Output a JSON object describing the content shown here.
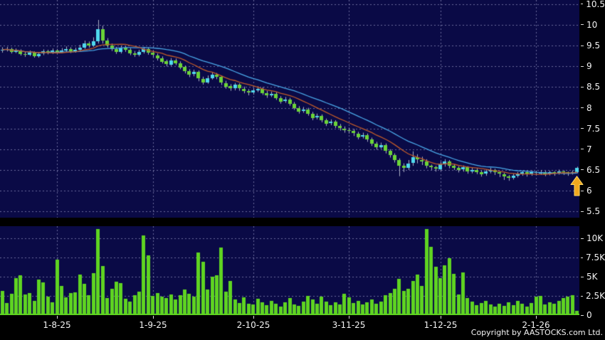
{
  "meta": {
    "copyright": "Copyright by AASTOCKS.com Ltd."
  },
  "colors": {
    "page_bg": "#000000",
    "panel_bg": "#0a0a46",
    "grid": "rgba(160,160,205,0.65)",
    "candle_up": "#4fd9ee",
    "candle_down": "#6ad437",
    "wick": "#aab0c2",
    "ma_short": "#c05a28",
    "ma_long": "#4aa8e8",
    "volume_bar": "#5fd421",
    "axis_text": "#f2f2f2",
    "arrow_fill": "#f0a81e",
    "arrow_stroke": "#ffd866"
  },
  "chart_data": {
    "type": "candlestick",
    "title": "",
    "xlabel": "",
    "ylabel": "",
    "legend": [],
    "grid": "dashed",
    "price_axis": {
      "ylim": [
        5.35,
        10.6
      ],
      "ticks": [
        {
          "label": "10.5",
          "value": 10.5
        },
        {
          "label": "10",
          "value": 10
        },
        {
          "label": "9.5",
          "value": 9.5
        },
        {
          "label": "9",
          "value": 9
        },
        {
          "label": "8.5",
          "value": 8.5
        },
        {
          "label": "8",
          "value": 8
        },
        {
          "label": "7.5",
          "value": 7.5
        },
        {
          "label": "7",
          "value": 7
        },
        {
          "label": "6.5",
          "value": 6.5
        },
        {
          "label": "6",
          "value": 6
        },
        {
          "label": "5.5",
          "value": 5.5
        }
      ]
    },
    "volume_axis": {
      "ylim": [
        0,
        11.6
      ],
      "unit": "K",
      "ticks": [
        {
          "label": "10K",
          "value": 10
        },
        {
          "label": "7.5K",
          "value": 7.5
        },
        {
          "label": "5K",
          "value": 5
        },
        {
          "label": "2.5K",
          "value": 2.5
        },
        {
          "label": "0",
          "value": 0
        }
      ]
    },
    "x_axis": {
      "ticks": [
        {
          "label": "1-8-25",
          "index": 12
        },
        {
          "label": "1-9-25",
          "index": 33
        },
        {
          "label": "2-10-25",
          "index": 55
        },
        {
          "label": "3-11-25",
          "index": 76
        },
        {
          "label": "1-12-25",
          "index": 96
        },
        {
          "label": "2-1-26",
          "index": 117
        }
      ]
    },
    "ma_short_period": 10,
    "ma_long_period": 20,
    "marker": {
      "type": "up-arrow",
      "candle_index": 126,
      "price": 6.2
    },
    "candles": [
      [
        9.38,
        9.46,
        9.33,
        9.4
      ],
      [
        9.4,
        9.47,
        9.36,
        9.42
      ],
      [
        9.42,
        9.45,
        9.31,
        9.35
      ],
      [
        9.35,
        9.43,
        9.32,
        9.38
      ],
      [
        9.38,
        9.41,
        9.26,
        9.3
      ],
      [
        9.3,
        9.35,
        9.23,
        9.28
      ],
      [
        9.28,
        9.38,
        9.25,
        9.33
      ],
      [
        9.33,
        9.36,
        9.21,
        9.25
      ],
      [
        9.25,
        9.34,
        9.21,
        9.3
      ],
      [
        9.3,
        9.41,
        9.27,
        9.36
      ],
      [
        9.36,
        9.4,
        9.29,
        9.33
      ],
      [
        9.33,
        9.43,
        9.3,
        9.38
      ],
      [
        9.38,
        9.42,
        9.31,
        9.35
      ],
      [
        9.35,
        9.44,
        9.32,
        9.38
      ],
      [
        9.38,
        9.48,
        9.35,
        9.42
      ],
      [
        9.42,
        9.46,
        9.32,
        9.36
      ],
      [
        9.36,
        9.45,
        9.33,
        9.4
      ],
      [
        9.4,
        9.52,
        9.37,
        9.45
      ],
      [
        9.45,
        9.62,
        9.42,
        9.55
      ],
      [
        9.55,
        9.6,
        9.45,
        9.5
      ],
      [
        9.5,
        9.7,
        9.47,
        9.6
      ],
      [
        9.6,
        10.12,
        9.55,
        9.9
      ],
      [
        9.9,
        9.98,
        9.55,
        9.62
      ],
      [
        9.62,
        9.68,
        9.45,
        9.5
      ],
      [
        9.5,
        9.55,
        9.37,
        9.42
      ],
      [
        9.42,
        9.47,
        9.3,
        9.35
      ],
      [
        9.35,
        9.5,
        9.31,
        9.45
      ],
      [
        9.45,
        9.49,
        9.35,
        9.4
      ],
      [
        9.4,
        9.44,
        9.27,
        9.32
      ],
      [
        9.32,
        9.37,
        9.23,
        9.28
      ],
      [
        9.28,
        9.4,
        9.24,
        9.35
      ],
      [
        9.35,
        9.47,
        9.31,
        9.42
      ],
      [
        9.42,
        9.46,
        9.28,
        9.33
      ],
      [
        9.33,
        9.38,
        9.22,
        9.27
      ],
      [
        9.27,
        9.31,
        9.14,
        9.2
      ],
      [
        9.2,
        9.24,
        9.07,
        9.12
      ],
      [
        9.12,
        9.16,
        9.0,
        9.05
      ],
      [
        9.05,
        9.2,
        9.01,
        9.15
      ],
      [
        9.15,
        9.19,
        9.03,
        9.08
      ],
      [
        9.08,
        9.12,
        8.93,
        8.98
      ],
      [
        8.98,
        9.02,
        8.83,
        8.88
      ],
      [
        8.88,
        8.93,
        8.74,
        8.8
      ],
      [
        8.8,
        8.92,
        8.76,
        8.86
      ],
      [
        8.86,
        8.9,
        8.64,
        8.7
      ],
      [
        8.7,
        8.75,
        8.56,
        8.62
      ],
      [
        8.62,
        8.78,
        8.58,
        8.72
      ],
      [
        8.72,
        8.86,
        8.68,
        8.8
      ],
      [
        8.8,
        8.84,
        8.69,
        8.74
      ],
      [
        8.74,
        8.78,
        8.55,
        8.6
      ],
      [
        8.6,
        8.65,
        8.46,
        8.52
      ],
      [
        8.52,
        8.57,
        8.41,
        8.46
      ],
      [
        8.46,
        8.6,
        8.42,
        8.55
      ],
      [
        8.55,
        8.59,
        8.41,
        8.46
      ],
      [
        8.46,
        8.51,
        8.35,
        8.4
      ],
      [
        8.4,
        8.45,
        8.3,
        8.36
      ],
      [
        8.36,
        8.48,
        8.32,
        8.42
      ],
      [
        8.42,
        8.52,
        8.38,
        8.46
      ],
      [
        8.46,
        8.5,
        8.31,
        8.36
      ],
      [
        8.36,
        8.41,
        8.24,
        8.3
      ],
      [
        8.3,
        8.39,
        8.26,
        8.34
      ],
      [
        8.34,
        8.38,
        8.19,
        8.24
      ],
      [
        8.24,
        8.28,
        8.1,
        8.16
      ],
      [
        8.16,
        8.26,
        8.12,
        8.2
      ],
      [
        8.2,
        8.24,
        8.05,
        8.1
      ],
      [
        8.1,
        8.14,
        7.95,
        8.0
      ],
      [
        8.0,
        8.04,
        7.86,
        7.92
      ],
      [
        7.92,
        8.02,
        7.88,
        7.96
      ],
      [
        7.96,
        8.0,
        7.81,
        7.86
      ],
      [
        7.86,
        7.9,
        7.7,
        7.76
      ],
      [
        7.76,
        7.86,
        7.72,
        7.8
      ],
      [
        7.8,
        7.84,
        7.65,
        7.7
      ],
      [
        7.7,
        7.74,
        7.56,
        7.62
      ],
      [
        7.62,
        7.72,
        7.58,
        7.66
      ],
      [
        7.66,
        7.7,
        7.51,
        7.56
      ],
      [
        7.56,
        7.61,
        7.45,
        7.5
      ],
      [
        7.5,
        7.55,
        7.4,
        7.46
      ],
      [
        7.46,
        7.52,
        7.38,
        7.44
      ],
      [
        7.44,
        7.49,
        7.32,
        7.38
      ],
      [
        7.38,
        7.42,
        7.24,
        7.3
      ],
      [
        7.3,
        7.4,
        7.26,
        7.34
      ],
      [
        7.34,
        7.38,
        7.18,
        7.24
      ],
      [
        7.24,
        7.28,
        7.08,
        7.14
      ],
      [
        7.14,
        7.18,
        6.99,
        7.05
      ],
      [
        7.05,
        7.16,
        7.01,
        7.1
      ],
      [
        7.1,
        7.14,
        6.9,
        6.96
      ],
      [
        6.96,
        7.0,
        6.8,
        6.86
      ],
      [
        6.86,
        6.9,
        6.68,
        6.74
      ],
      [
        6.74,
        6.78,
        6.35,
        6.6
      ],
      [
        6.6,
        6.66,
        6.45,
        6.55
      ],
      [
        6.55,
        6.74,
        6.5,
        6.66
      ],
      [
        6.66,
        6.95,
        6.6,
        6.8
      ],
      [
        6.8,
        6.88,
        6.66,
        6.74
      ],
      [
        6.74,
        6.82,
        6.62,
        6.7
      ],
      [
        6.7,
        6.76,
        6.54,
        6.6
      ],
      [
        6.6,
        6.63,
        6.5,
        6.56
      ],
      [
        6.56,
        6.6,
        6.46,
        6.52
      ],
      [
        6.52,
        6.7,
        6.48,
        6.64
      ],
      [
        6.64,
        6.76,
        6.58,
        6.7
      ],
      [
        6.7,
        6.74,
        6.54,
        6.6
      ],
      [
        6.6,
        6.64,
        6.5,
        6.55
      ],
      [
        6.55,
        6.59,
        6.44,
        6.5
      ],
      [
        6.5,
        6.61,
        6.46,
        6.56
      ],
      [
        6.56,
        6.59,
        6.41,
        6.46
      ],
      [
        6.46,
        6.55,
        6.42,
        6.5
      ],
      [
        6.5,
        6.54,
        6.4,
        6.45
      ],
      [
        6.45,
        6.49,
        6.34,
        6.4
      ],
      [
        6.4,
        6.51,
        6.36,
        6.46
      ],
      [
        6.46,
        6.55,
        6.42,
        6.5
      ],
      [
        6.5,
        6.53,
        6.38,
        6.44
      ],
      [
        6.44,
        6.47,
        6.33,
        6.4
      ],
      [
        6.4,
        6.43,
        6.26,
        6.34
      ],
      [
        6.34,
        6.38,
        6.24,
        6.3
      ],
      [
        6.3,
        6.41,
        6.27,
        6.36
      ],
      [
        6.36,
        6.45,
        6.32,
        6.4
      ],
      [
        6.4,
        6.48,
        6.36,
        6.44
      ],
      [
        6.44,
        6.47,
        6.34,
        6.4
      ],
      [
        6.4,
        6.49,
        6.36,
        6.44
      ],
      [
        6.44,
        6.48,
        6.37,
        6.42
      ],
      [
        6.42,
        6.5,
        6.38,
        6.45
      ],
      [
        6.45,
        6.48,
        6.35,
        6.4
      ],
      [
        6.4,
        6.48,
        6.37,
        6.44
      ],
      [
        6.44,
        6.47,
        6.36,
        6.42
      ],
      [
        6.42,
        6.51,
        6.39,
        6.46
      ],
      [
        6.46,
        6.49,
        6.38,
        6.44
      ],
      [
        6.44,
        6.46,
        6.36,
        6.42
      ],
      [
        6.42,
        6.49,
        6.39,
        6.45
      ],
      [
        6.45,
        6.58,
        6.42,
        6.55
      ]
    ],
    "volumes_k": [
      3.2,
      1.6,
      2.8,
      4.8,
      5.2,
      2.7,
      2.9,
      1.9,
      4.6,
      4.3,
      2.4,
      1.7,
      7.2,
      3.8,
      2.3,
      2.9,
      3.0,
      5.3,
      4.1,
      2.6,
      5.5,
      11.2,
      6.4,
      2.2,
      3.4,
      4.4,
      4.2,
      2.1,
      1.8,
      2.6,
      3.1,
      10.4,
      7.8,
      2.5,
      2.9,
      2.4,
      2.2,
      2.7,
      2.0,
      2.6,
      3.3,
      2.8,
      2.4,
      8.2,
      7.0,
      3.3,
      5.0,
      5.2,
      8.8,
      3.1,
      4.5,
      2.0,
      1.6,
      2.3,
      1.5,
      1.4,
      2.1,
      1.7,
      1.3,
      1.9,
      1.5,
      1.1,
      1.7,
      2.2,
      1.4,
      1.2,
      1.8,
      2.5,
      2.0,
      1.5,
      2.4,
      1.8,
      1.3,
      1.7,
      1.4,
      2.8,
      2.3,
      1.6,
      1.9,
      1.4,
      1.7,
      2.0,
      1.5,
      1.8,
      2.6,
      2.9,
      3.4,
      4.7,
      3.2,
      3.4,
      4.5,
      5.3,
      3.8,
      11.2,
      8.9,
      6.3,
      4.8,
      6.5,
      7.4,
      5.4,
      2.7,
      5.6,
      2.2,
      1.8,
      1.3,
      1.6,
      1.9,
      1.4,
      1.1,
      1.5,
      1.2,
      1.7,
      1.3,
      1.9,
      1.5,
      1.1,
      1.6,
      2.4,
      2.5,
      1.4,
      1.7,
      1.5,
      1.9,
      2.2,
      2.4,
      2.6,
      0.6
    ]
  }
}
